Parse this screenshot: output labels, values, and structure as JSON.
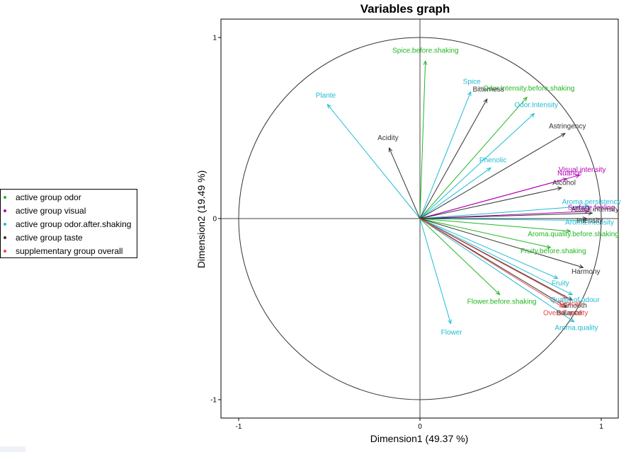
{
  "chart_data": {
    "type": "variable-factor-map",
    "title": "Variables graph",
    "xlabel": "Dimension1 (49.37 %)",
    "ylabel": "Dimension2 (19.49 %)",
    "xlim": [
      -1.1,
      1.1
    ],
    "ylim": [
      -1.1,
      1.1
    ],
    "x_ticks": [
      "-1",
      "0",
      "1"
    ],
    "y_ticks": [
      "1",
      "0",
      "-1"
    ],
    "circle_radius": 1,
    "colors": {
      "odor": "#22b622",
      "visual": "#b400b4",
      "odor_after_shaking": "#1fbcd2",
      "taste": "#333333",
      "overall": "#e64646"
    },
    "legend": [
      {
        "label": "active  group odor",
        "group": "odor"
      },
      {
        "label": "active  group visual",
        "group": "visual"
      },
      {
        "label": "active  group odor.after.shaking",
        "group": "odor_after_shaking"
      },
      {
        "label": "active  group taste",
        "group": "taste"
      },
      {
        "label": "supplementary  group overall",
        "group": "overall"
      }
    ],
    "variables": [
      {
        "name": "Spice.before.shaking",
        "group": "odor",
        "x": 0.03,
        "y": 0.87
      },
      {
        "name": "Odor.Intensity.before.shaking",
        "group": "odor",
        "x": 0.59,
        "y": 0.67
      },
      {
        "name": "Aroma.quality.before.shaking",
        "group": "odor",
        "x": 0.83,
        "y": -0.07
      },
      {
        "name": "Fruity.before.shaking",
        "group": "odor",
        "x": 0.72,
        "y": -0.16
      },
      {
        "name": "Flower.before.shaking",
        "group": "odor",
        "x": 0.44,
        "y": -0.42
      },
      {
        "name": "Visual.intensity",
        "group": "visual",
        "x": 0.88,
        "y": 0.24
      },
      {
        "name": "Nuance",
        "group": "visual",
        "x": 0.81,
        "y": 0.22
      },
      {
        "name": "Surface.feeling",
        "group": "visual",
        "x": 0.93,
        "y": 0.04
      },
      {
        "name": "Plante",
        "group": "odor_after_shaking",
        "x": -0.51,
        "y": 0.63
      },
      {
        "name": "Spice",
        "group": "odor_after_shaking",
        "x": 0.28,
        "y": 0.7
      },
      {
        "name": "Odor.Intensity",
        "group": "odor_after_shaking",
        "x": 0.63,
        "y": 0.58
      },
      {
        "name": "Phenolic",
        "group": "odor_after_shaking",
        "x": 0.39,
        "y": 0.28
      },
      {
        "name": "Aroma.persistency",
        "group": "odor_after_shaking",
        "x": 0.93,
        "y": 0.07
      },
      {
        "name": "Aroma.intensity",
        "group": "odor_after_shaking",
        "x": 0.92,
        "y": -0.01
      },
      {
        "name": "Fruity",
        "group": "odor_after_shaking",
        "x": 0.76,
        "y": -0.33
      },
      {
        "name": "Quality.of.odour",
        "group": "odor_after_shaking",
        "x": 0.84,
        "y": -0.42
      },
      {
        "name": "Aroma.quality",
        "group": "odor_after_shaking",
        "x": 0.85,
        "y": -0.57
      },
      {
        "name": "Flower",
        "group": "odor_after_shaking",
        "x": 0.17,
        "y": -0.58
      },
      {
        "name": "Bitterness",
        "group": "taste",
        "x": 0.37,
        "y": 0.66
      },
      {
        "name": "Astringency",
        "group": "taste",
        "x": 0.8,
        "y": 0.47
      },
      {
        "name": "Acidity",
        "group": "taste",
        "x": -0.17,
        "y": 0.39
      },
      {
        "name": "Alcohol",
        "group": "taste",
        "x": 0.78,
        "y": 0.17
      },
      {
        "name": "Attack.intensity",
        "group": "taste",
        "x": 0.95,
        "y": 0.03
      },
      {
        "name": "Intensity",
        "group": "taste",
        "x": 0.92,
        "y": 0.0
      },
      {
        "name": "Harmony",
        "group": "taste",
        "x": 0.9,
        "y": -0.27
      },
      {
        "name": "Smooth",
        "group": "taste",
        "x": 0.84,
        "y": -0.45
      },
      {
        "name": "Balance",
        "group": "taste",
        "x": 0.81,
        "y": -0.49
      },
      {
        "name": "Typical",
        "group": "overall",
        "x": 0.81,
        "y": -0.44
      },
      {
        "name": "Overall.quality",
        "group": "overall",
        "x": 0.79,
        "y": -0.49
      }
    ]
  }
}
